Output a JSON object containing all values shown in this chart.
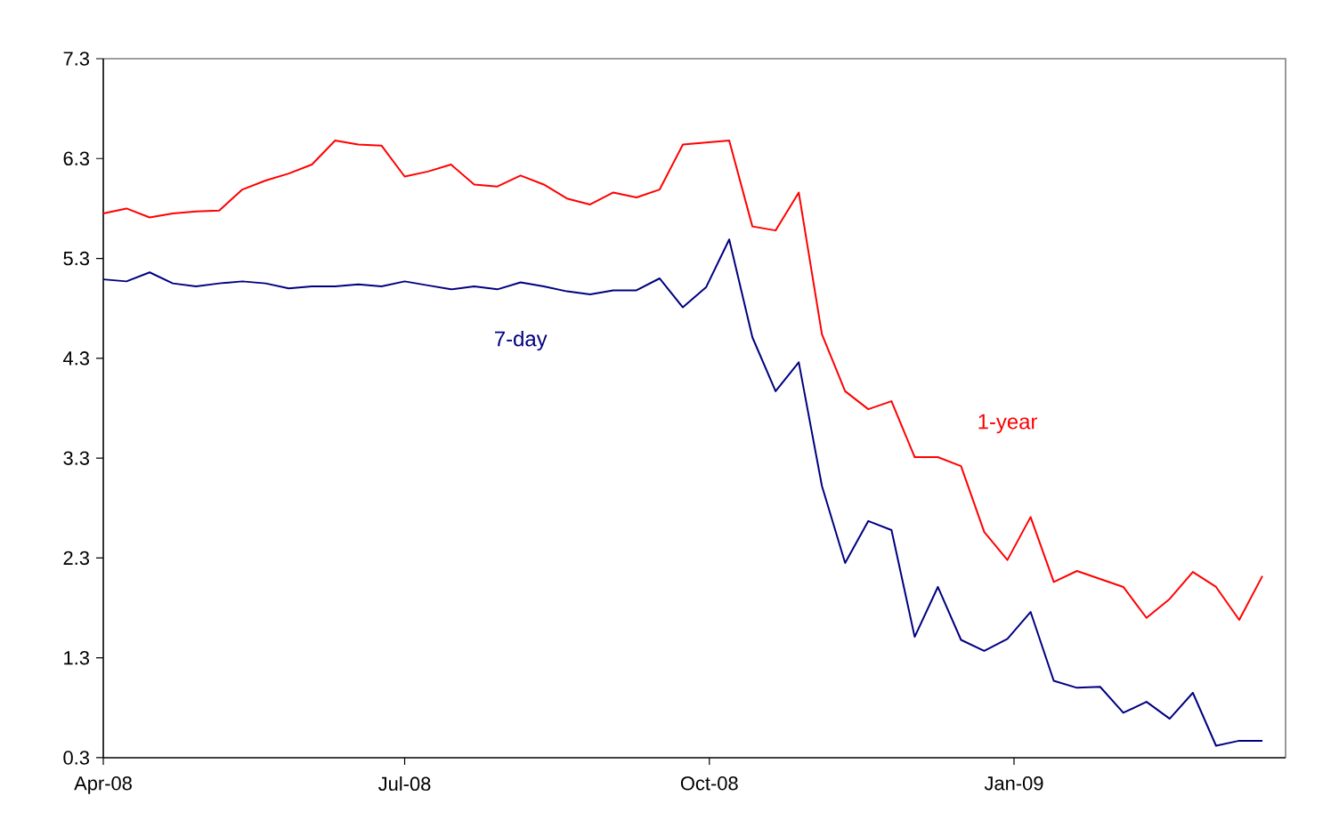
{
  "chart_data": {
    "type": "line",
    "x": [
      "2008-04-01",
      "2008-04-08",
      "2008-04-15",
      "2008-04-22",
      "2008-04-29",
      "2008-05-06",
      "2008-05-13",
      "2008-05-20",
      "2008-05-27",
      "2008-06-03",
      "2008-06-10",
      "2008-06-17",
      "2008-06-24",
      "2008-07-01",
      "2008-07-08",
      "2008-07-15",
      "2008-07-22",
      "2008-07-29",
      "2008-08-05",
      "2008-08-12",
      "2008-08-19",
      "2008-08-26",
      "2008-09-02",
      "2008-09-09",
      "2008-09-16",
      "2008-09-23",
      "2008-09-30",
      "2008-10-07",
      "2008-10-14",
      "2008-10-21",
      "2008-10-28",
      "2008-11-04",
      "2008-11-11",
      "2008-11-18",
      "2008-11-25",
      "2008-12-02",
      "2008-12-09",
      "2008-12-16",
      "2008-12-23",
      "2008-12-30",
      "2009-01-06",
      "2009-01-13",
      "2009-01-20",
      "2009-01-27",
      "2009-02-03",
      "2009-02-10",
      "2009-02-17",
      "2009-02-24",
      "2009-03-03",
      "2009-03-10",
      "2009-03-17"
    ],
    "series": [
      {
        "name": "7-day",
        "color": "#000080",
        "values": [
          5.09,
          5.07,
          5.16,
          5.05,
          5.02,
          5.05,
          5.07,
          5.05,
          5.0,
          5.02,
          5.02,
          5.04,
          5.02,
          5.07,
          5.03,
          4.99,
          5.02,
          4.99,
          5.06,
          5.02,
          4.97,
          4.94,
          4.98,
          4.98,
          5.1,
          4.81,
          5.01,
          5.49,
          4.51,
          3.97,
          4.26,
          3.02,
          2.25,
          2.67,
          2.58,
          1.51,
          2.01,
          1.48,
          1.37,
          1.49,
          1.76,
          1.07,
          1.0,
          1.01,
          0.75,
          0.86,
          0.69,
          0.95,
          0.42,
          0.47,
          0.47
        ]
      },
      {
        "name": "1-year",
        "color": "#ff0000",
        "values": [
          5.75,
          5.8,
          5.71,
          5.75,
          5.77,
          5.78,
          5.99,
          6.08,
          6.15,
          6.24,
          6.48,
          6.44,
          6.43,
          6.12,
          6.17,
          6.24,
          6.04,
          6.02,
          6.13,
          6.04,
          5.9,
          5.84,
          5.96,
          5.91,
          5.99,
          6.44,
          6.46,
          6.48,
          5.62,
          5.58,
          5.96,
          4.54,
          3.97,
          3.79,
          3.87,
          3.31,
          3.31,
          3.22,
          2.56,
          2.28,
          2.71,
          2.06,
          2.17,
          2.09,
          2.01,
          1.7,
          1.89,
          2.16,
          2.01,
          1.68,
          2.12
        ]
      }
    ],
    "xlim": [
      "2008-04-01",
      "2009-03-24"
    ],
    "xticks": [
      {
        "value": "2008-04-01",
        "label": "Apr-08"
      },
      {
        "value": "2008-07-01",
        "label": "Jul-08"
      },
      {
        "value": "2008-10-01",
        "label": "Oct-08"
      },
      {
        "value": "2009-01-01",
        "label": "Jan-09"
      }
    ],
    "ylim": [
      0.3,
      7.3
    ],
    "yticks": [
      0.3,
      1.3,
      2.3,
      3.3,
      4.3,
      5.3,
      6.3,
      7.3
    ],
    "grid": false,
    "legend": false,
    "marker": "none",
    "line_style": "solid"
  }
}
